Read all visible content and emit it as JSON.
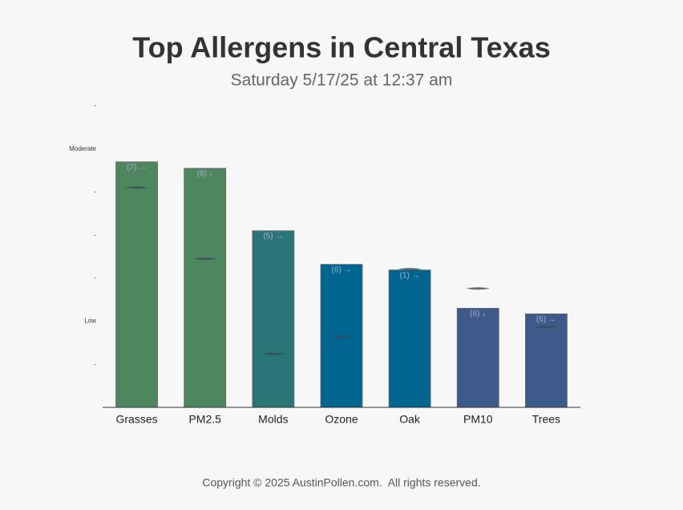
{
  "chart_data": {
    "type": "bar",
    "title": "Top Allergens in Central Texas",
    "subtitle": "Saturday 5/17/25 at 12:37 am",
    "categories": [
      "Grasses",
      "PM2.5",
      "Molds",
      "Ozone",
      "Oak",
      "PM10",
      "Trees"
    ],
    "values": [
      5.7,
      5.55,
      4.1,
      3.32,
      3.19,
      2.3,
      2.17
    ],
    "colors": [
      "#4e8660",
      "#4e8660",
      "#2a7676",
      "#006690",
      "#006690",
      "#3d5a8a",
      "#3d5a8a"
    ],
    "labels": [
      "(7) →",
      "(8) ↓",
      "(5) →",
      "(6) →",
      "(1) →",
      "(6) ↓",
      "(6) →"
    ],
    "markers": [
      5.1,
      3.45,
      1.24,
      1.63,
      3.21,
      2.76,
      1.87
    ],
    "ylim": [
      0,
      7
    ],
    "yticks": [
      {
        "value": 1,
        "label": "-"
      },
      {
        "value": 2,
        "label": "Low"
      },
      {
        "value": 3,
        "label": "-"
      },
      {
        "value": 4,
        "label": "-"
      },
      {
        "value": 5,
        "label": "-"
      },
      {
        "value": 6,
        "label": "Moderate"
      },
      {
        "value": 7,
        "label": "-"
      }
    ],
    "footer": "Copyright © 2025 AustinPollen.com.  All rights reserved."
  }
}
